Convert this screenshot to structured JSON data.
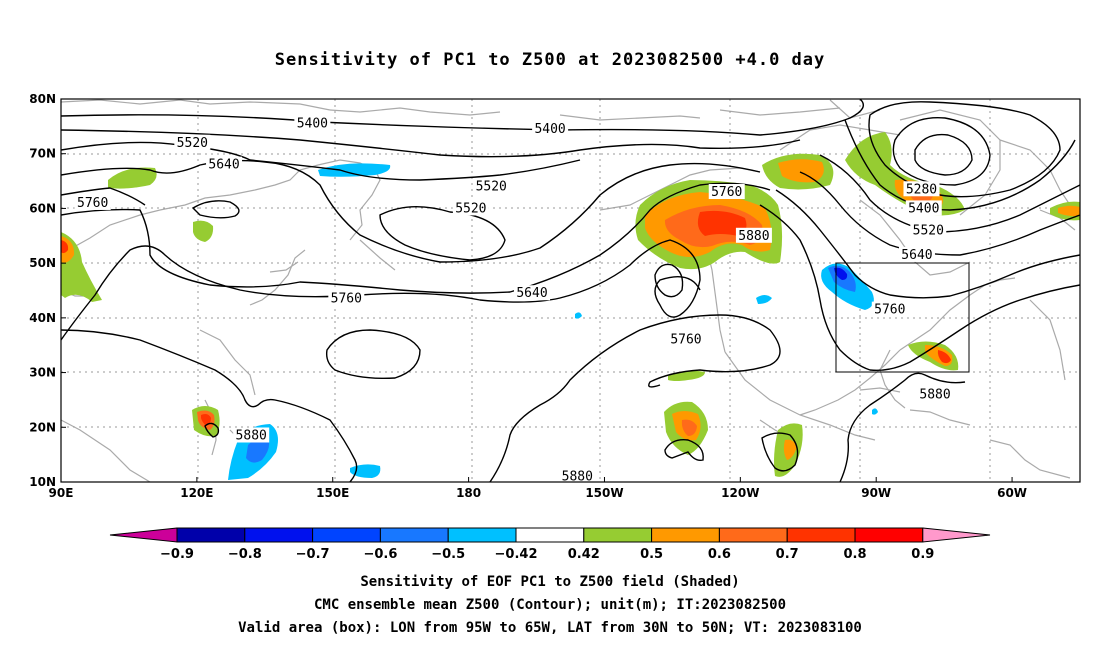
{
  "title": "Sensitivity of PC1 to Z500 at 2023082500 +4.0 day",
  "map": {
    "lat_labels": [
      "80N",
      "70N",
      "60N",
      "50N",
      "40N",
      "30N",
      "20N",
      "10N"
    ],
    "lon_labels": [
      "90E",
      "120E",
      "150E",
      "180",
      "150W",
      "120W",
      "90W",
      "60W"
    ],
    "contour_labels": [
      {
        "text": "5400",
        "lon": 145.5,
        "lat": 75.5
      },
      {
        "text": "5400",
        "lon": -162,
        "lat": 74.5
      },
      {
        "text": "5520",
        "lon": 119,
        "lat": 72
      },
      {
        "text": "5640",
        "lon": 126,
        "lat": 68
      },
      {
        "text": "5520",
        "lon": -175,
        "lat": 64
      },
      {
        "text": "5760",
        "lon": 97,
        "lat": 61
      },
      {
        "text": "5520",
        "lon": -179.5,
        "lat": 60
      },
      {
        "text": "5760",
        "lon": -123,
        "lat": 63
      },
      {
        "text": "5880",
        "lon": -117,
        "lat": 55
      },
      {
        "text": "5280",
        "lon": -80,
        "lat": 63.5
      },
      {
        "text": "5400",
        "lon": -79.5,
        "lat": 60
      },
      {
        "text": "5520",
        "lon": -78.5,
        "lat": 56
      },
      {
        "text": "5640",
        "lon": -81,
        "lat": 51.5
      },
      {
        "text": "5760",
        "lon": -87,
        "lat": 41.5
      },
      {
        "text": "5760",
        "lon": 153,
        "lat": 43.5
      },
      {
        "text": "5640",
        "lon": -166,
        "lat": 44.5
      },
      {
        "text": "5760",
        "lon": -132,
        "lat": 36
      },
      {
        "text": "5880",
        "lon": 132,
        "lat": 18.5
      },
      {
        "text": "5880",
        "lon": -156,
        "lat": 11
      },
      {
        "text": "5880",
        "lon": -77,
        "lat": 26
      }
    ],
    "valid_box": {
      "lon_west": -95,
      "lon_east": -65,
      "lat_south": 30,
      "lat_north": 50
    }
  },
  "colorbar": {
    "labels": [
      "−0.9",
      "−0.8",
      "−0.7",
      "−0.6",
      "−0.5",
      "−0.42",
      "0.42",
      "0.5",
      "0.6",
      "0.7",
      "0.8",
      "0.9"
    ],
    "colors": [
      "#0000aa",
      "#0011ee",
      "#0044ff",
      "#1878ff",
      "#00c0ff",
      "#ffffff",
      "#96cc32",
      "#ff9900",
      "#ff6a1a",
      "#ff3300",
      "#ff0000"
    ],
    "low_color": "#cc0099",
    "high_color": "#ff99cc"
  },
  "caption": {
    "line1": "Sensitivity of EOF PC1 to Z500 field (Shaded)",
    "line2": "CMC ensemble mean Z500 (Contour); unit(m); IT:2023082500",
    "line3": "Valid area (box): LON from 95W to 65W, LAT from 30N to 50N; VT: 2023083100"
  }
}
